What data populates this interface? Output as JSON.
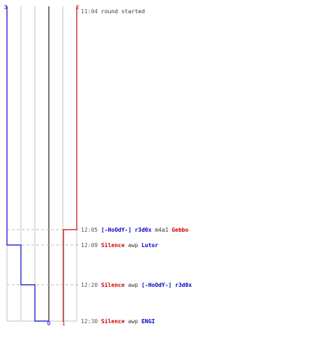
{
  "colors": {
    "background": "#ffffff",
    "team_blue": "#0000cc",
    "team_red": "#cc0000",
    "neutral_text": "#333333",
    "time_text": "#555555",
    "grid_line": "#c0c0c0",
    "zero_line": "#777777",
    "event_line": "#bbbbbb"
  },
  "score_axis": {
    "blue_top_label": "3",
    "red_top_label": "2",
    "blue_bottom_label": "0",
    "red_bottom_label": "1"
  },
  "events": [
    {
      "time": "11:04",
      "parts": [
        {
          "text": "round started",
          "team": "neutral"
        }
      ]
    },
    {
      "time": "12:05",
      "parts": [
        {
          "text": "[-HoOdY-] r3d0x",
          "team": "blue"
        },
        {
          "text": " m4a1 ",
          "team": "neutral"
        },
        {
          "text": "Gebbo",
          "team": "red"
        }
      ]
    },
    {
      "time": "12:09",
      "parts": [
        {
          "text": "Silence",
          "team": "red"
        },
        {
          "text": " awp ",
          "team": "neutral"
        },
        {
          "text": "Lutor",
          "team": "blue"
        }
      ]
    },
    {
      "time": "12:20",
      "parts": [
        {
          "text": "Silence",
          "team": "red"
        },
        {
          "text": " awp ",
          "team": "neutral"
        },
        {
          "text": "[-HoOdY-] r3d0x",
          "team": "blue"
        }
      ]
    },
    {
      "time": "12:30",
      "parts": [
        {
          "text": "Silence",
          "team": "red"
        },
        {
          "text": " awp ",
          "team": "neutral"
        },
        {
          "text": "ENGI",
          "team": "blue"
        }
      ]
    }
  ]
}
